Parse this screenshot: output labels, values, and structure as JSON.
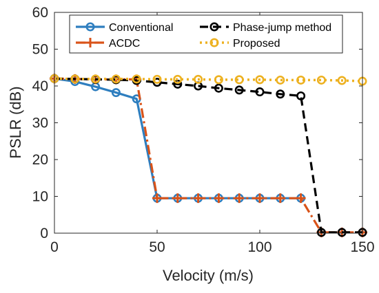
{
  "chart_data": {
    "type": "line",
    "title": "",
    "xlabel": "Velocity (m/s)",
    "ylabel": "PSLR (dB)",
    "xlim": [
      0,
      150
    ],
    "ylim": [
      0,
      60
    ],
    "xticks": [
      0,
      50,
      100,
      150
    ],
    "yticks": [
      0,
      10,
      20,
      30,
      40,
      50,
      60
    ],
    "grid": false,
    "legend_position": "top",
    "x": [
      0,
      10,
      20,
      30,
      40,
      50,
      60,
      70,
      80,
      90,
      100,
      110,
      120,
      130,
      140,
      150
    ],
    "series": [
      {
        "name": "Conventional",
        "color": "#2e7ebf",
        "style": "solid-circle",
        "values": [
          42.0,
          41.2,
          39.8,
          38.2,
          36.5,
          9.5,
          9.5,
          9.5,
          9.5,
          9.5,
          9.5,
          9.5,
          9.5,
          null,
          null,
          null
        ]
      },
      {
        "name": "ACDC",
        "color": "#d95319",
        "style": "dashdot-plus",
        "values": [
          42.0,
          41.9,
          41.8,
          41.8,
          41.8,
          9.5,
          9.5,
          9.5,
          9.5,
          9.5,
          9.5,
          9.5,
          9.5,
          0.2,
          0.2,
          0.2
        ]
      },
      {
        "name": "Phase-jump method",
        "color": "#000000",
        "style": "dashed-circle",
        "values": [
          42.0,
          41.9,
          41.8,
          41.7,
          41.5,
          41.0,
          40.5,
          40.0,
          39.4,
          38.9,
          38.4,
          37.8,
          37.3,
          0.2,
          0.2,
          0.2
        ]
      },
      {
        "name": "Proposed",
        "color": "#edb120",
        "style": "dotted-circle",
        "values": [
          42.0,
          41.9,
          41.9,
          41.9,
          41.9,
          41.8,
          41.8,
          41.8,
          41.7,
          41.7,
          41.7,
          41.6,
          41.6,
          41.6,
          41.5,
          41.3
        ]
      }
    ]
  }
}
